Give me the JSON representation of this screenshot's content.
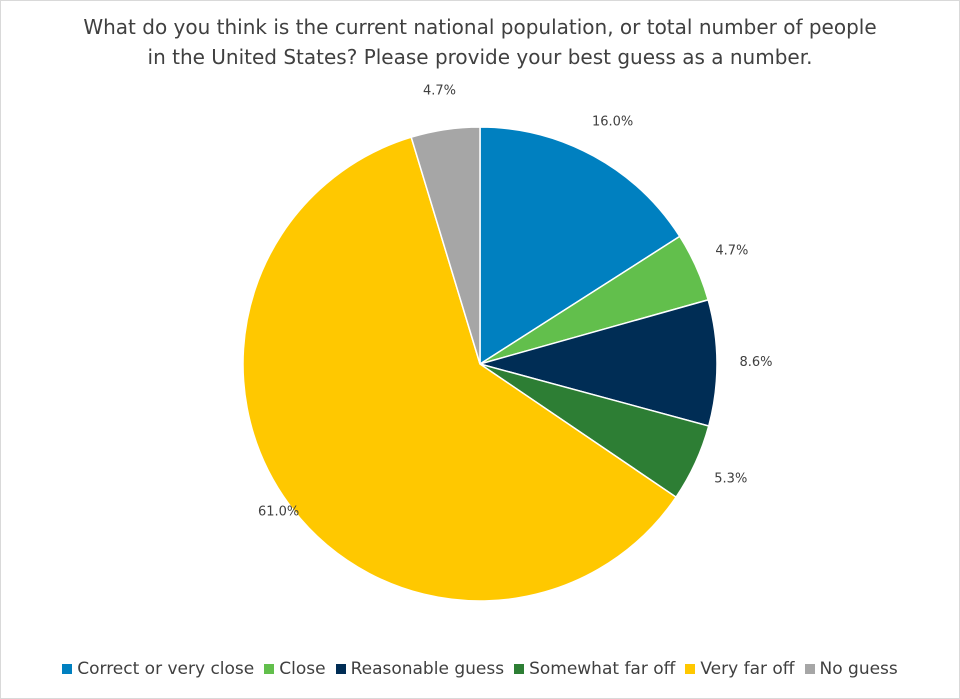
{
  "chart_data": {
    "type": "pie",
    "title_lines": [
      "What do you think is the current national population, or total number of people",
      "in the United States? Please provide your best guess as a number."
    ],
    "categories": [
      "Correct or very close",
      "Close",
      "Reasonable guess",
      "Somewhat far off",
      "Very far off",
      "No guess"
    ],
    "values": [
      16.0,
      4.7,
      8.6,
      5.3,
      61.0,
      4.7
    ],
    "labels": [
      "16.0%",
      "4.7%",
      "8.6%",
      "5.3%",
      "61.0%",
      "4.7%"
    ],
    "colors": [
      "#0080C0",
      "#62BF4C",
      "#002D55",
      "#2D7E34",
      "#FFC800",
      "#A6A6A6"
    ],
    "start_angle": "12 o'clock, clockwise",
    "legend_position": "bottom"
  }
}
